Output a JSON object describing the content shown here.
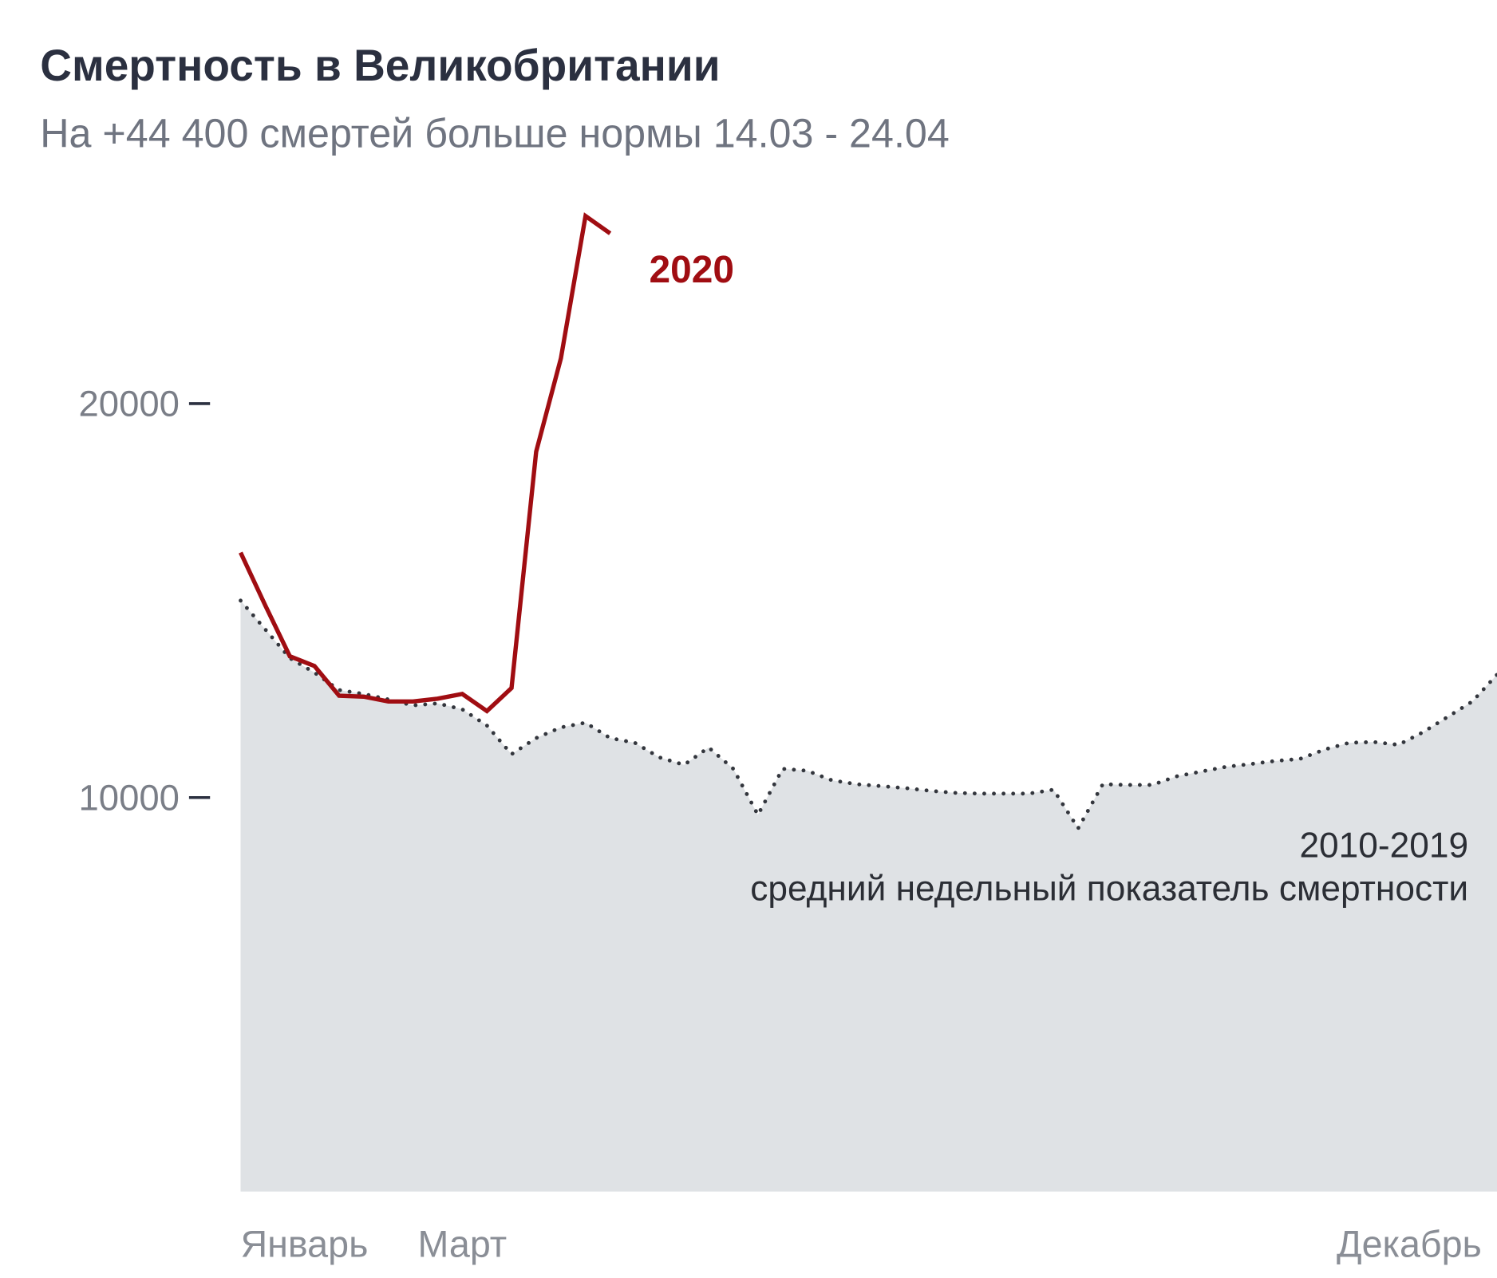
{
  "chart_data": {
    "type": "line",
    "title": "Смертность в Великобритании",
    "subtitle": "На +44 400 смертей больше нормы 14.03 - 24.04",
    "x": [
      1,
      2,
      3,
      4,
      5,
      6,
      7,
      8,
      9,
      10,
      11,
      12,
      13,
      14,
      15,
      16,
      17,
      18,
      19,
      20,
      21,
      22,
      23,
      24,
      25,
      26,
      27,
      28,
      29,
      30,
      31,
      32,
      33,
      34,
      35,
      36,
      37,
      38,
      39,
      40,
      41,
      42,
      43,
      44,
      45,
      46,
      47,
      48,
      49,
      50,
      51,
      52
    ],
    "xlim": [
      1,
      52
    ],
    "xticks": [
      {
        "value": 1,
        "label": "Январь"
      },
      {
        "value": 10,
        "label": "Март"
      },
      {
        "value": 52,
        "label": "Декабрь"
      }
    ],
    "ylim": [
      0,
      30000
    ],
    "yticks": [
      10000,
      20000
    ],
    "series": [
      {
        "name": "2010-2019",
        "color": "#33363d",
        "style": "dotted-area",
        "area_color": "#dfe2e5",
        "values": [
          15000,
          14270,
          13540,
          13170,
          12730,
          12630,
          12490,
          12340,
          12390,
          12240,
          11830,
          11100,
          11510,
          11780,
          11900,
          11510,
          11390,
          11020,
          10830,
          11270,
          10730,
          9560,
          10730,
          10680,
          10440,
          10340,
          10290,
          10240,
          10170,
          10120,
          10100,
          10100,
          10100,
          10200,
          9220,
          10340,
          10320,
          10320,
          10540,
          10660,
          10780,
          10850,
          10930,
          10980,
          11220,
          11390,
          11410,
          11340,
          11660,
          12050,
          12440,
          13120
        ]
      },
      {
        "name": "2020",
        "color": "#a00d12",
        "style": "solid",
        "values": [
          16220,
          14880,
          13585,
          13340,
          12585,
          12560,
          12440,
          12440,
          12510,
          12630,
          12195,
          12780,
          18780,
          21150,
          24760,
          24320,
          null,
          null,
          null,
          null,
          null,
          null,
          null,
          null,
          null,
          null,
          null,
          null,
          null,
          null,
          null,
          null,
          null,
          null,
          null,
          null,
          null,
          null,
          null,
          null,
          null,
          null,
          null,
          null,
          null,
          null,
          null,
          null,
          null,
          null,
          null,
          null
        ]
      }
    ],
    "annotation": "средний недельный показатель смертности"
  }
}
